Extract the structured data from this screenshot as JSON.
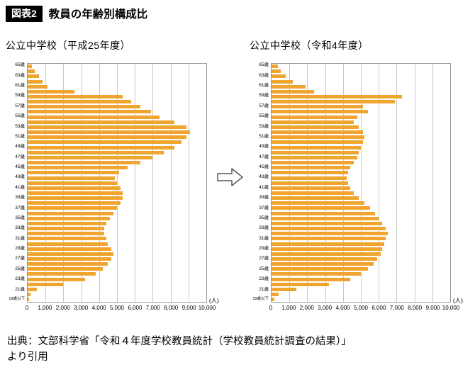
{
  "header": {
    "badge": "図表2",
    "title": "教員の年齢別構成比"
  },
  "source": {
    "line1": "出典：文部科学省「令和４年度学校教員統計（学校教員統計調査の結果）」",
    "line2": "より引用"
  },
  "colors": {
    "bar": "#F0A531",
    "grid": "#C8C8C8",
    "plot_border": "#9A9A9A"
  },
  "chart_data": [
    {
      "type": "bar",
      "orientation": "horizontal",
      "title": "公立中学校（平成25年度）",
      "unit": "(人)",
      "xlim": [
        0,
        10000
      ],
      "grid": true,
      "xticks": [
        "0",
        "1,000",
        "2,000",
        "3,000",
        "4,000",
        "5,000",
        "6,000",
        "7,000",
        "8,000",
        "9,000",
        "10,000"
      ],
      "rows": [
        {
          "label": "65歳",
          "value": 250
        },
        {
          "label": "",
          "value": 400
        },
        {
          "label": "63歳",
          "value": 650
        },
        {
          "label": "",
          "value": 850
        },
        {
          "label": "61歳",
          "value": 1100
        },
        {
          "label": "",
          "value": 2600
        },
        {
          "label": "59歳",
          "value": 5300
        },
        {
          "label": "",
          "value": 5800
        },
        {
          "label": "57歳",
          "value": 6300
        },
        {
          "label": "",
          "value": 6900
        },
        {
          "label": "55歳",
          "value": 7400
        },
        {
          "label": "",
          "value": 8200
        },
        {
          "label": "53歳",
          "value": 8900
        },
        {
          "label": "",
          "value": 9100
        },
        {
          "label": "51歳",
          "value": 8900
        },
        {
          "label": "",
          "value": 8600
        },
        {
          "label": "49歳",
          "value": 8200
        },
        {
          "label": "",
          "value": 7600
        },
        {
          "label": "47歳",
          "value": 7000
        },
        {
          "label": "",
          "value": 6300
        },
        {
          "label": "45歳",
          "value": 5600
        },
        {
          "label": "",
          "value": 5100
        },
        {
          "label": "43歳",
          "value": 4900
        },
        {
          "label": "",
          "value": 5000
        },
        {
          "label": "41歳",
          "value": 5200
        },
        {
          "label": "",
          "value": 5300
        },
        {
          "label": "39歳",
          "value": 5300
        },
        {
          "label": "",
          "value": 5200
        },
        {
          "label": "37歳",
          "value": 5000
        },
        {
          "label": "",
          "value": 4800
        },
        {
          "label": "35歳",
          "value": 4600
        },
        {
          "label": "",
          "value": 4400
        },
        {
          "label": "33歳",
          "value": 4300
        },
        {
          "label": "",
          "value": 4300
        },
        {
          "label": "31歳",
          "value": 4400
        },
        {
          "label": "",
          "value": 4500
        },
        {
          "label": "29歳",
          "value": 4700
        },
        {
          "label": "",
          "value": 4800
        },
        {
          "label": "27歳",
          "value": 4700
        },
        {
          "label": "",
          "value": 4500
        },
        {
          "label": "25歳",
          "value": 4200
        },
        {
          "label": "",
          "value": 3800
        },
        {
          "label": "23歳",
          "value": 3200
        },
        {
          "label": "",
          "value": 2000
        },
        {
          "label": "21歳",
          "value": 500
        },
        {
          "label": "",
          "value": 150
        },
        {
          "label": "19歳以下",
          "value": 80
        }
      ]
    },
    {
      "type": "bar",
      "orientation": "horizontal",
      "title": "公立中学校（令和4年度）",
      "unit": "(人)",
      "xlim": [
        0,
        10000
      ],
      "grid": true,
      "xticks": [
        "0",
        "1,000",
        "2,000",
        "3,000",
        "4,000",
        "5,000",
        "6,000",
        "7,000",
        "8,000",
        "9,000",
        "10,000"
      ],
      "rows": [
        {
          "label": "65歳",
          "value": 350
        },
        {
          "label": "",
          "value": 500
        },
        {
          "label": "63歳",
          "value": 800
        },
        {
          "label": "",
          "value": 1200
        },
        {
          "label": "61歳",
          "value": 1900
        },
        {
          "label": "",
          "value": 2400
        },
        {
          "label": "59歳",
          "value": 7300
        },
        {
          "label": "",
          "value": 6900
        },
        {
          "label": "57歳",
          "value": 5100
        },
        {
          "label": "",
          "value": 5400
        },
        {
          "label": "55歳",
          "value": 4800
        },
        {
          "label": "",
          "value": 4600
        },
        {
          "label": "53歳",
          "value": 4900
        },
        {
          "label": "",
          "value": 5100
        },
        {
          "label": "51歳",
          "value": 5200
        },
        {
          "label": "",
          "value": 5100
        },
        {
          "label": "49歳",
          "value": 5000
        },
        {
          "label": "",
          "value": 4900
        },
        {
          "label": "47歳",
          "value": 4800
        },
        {
          "label": "",
          "value": 4600
        },
        {
          "label": "45歳",
          "value": 4400
        },
        {
          "label": "",
          "value": 4300
        },
        {
          "label": "43歳",
          "value": 4200
        },
        {
          "label": "",
          "value": 4300
        },
        {
          "label": "41歳",
          "value": 4400
        },
        {
          "label": "",
          "value": 4600
        },
        {
          "label": "39歳",
          "value": 4900
        },
        {
          "label": "",
          "value": 5200
        },
        {
          "label": "37歳",
          "value": 5500
        },
        {
          "label": "",
          "value": 5800
        },
        {
          "label": "35歳",
          "value": 6000
        },
        {
          "label": "",
          "value": 6200
        },
        {
          "label": "33歳",
          "value": 6400
        },
        {
          "label": "",
          "value": 6500
        },
        {
          "label": "31歳",
          "value": 6400
        },
        {
          "label": "",
          "value": 6300
        },
        {
          "label": "29歳",
          "value": 6200
        },
        {
          "label": "",
          "value": 6100
        },
        {
          "label": "27歳",
          "value": 5900
        },
        {
          "label": "",
          "value": 5700
        },
        {
          "label": "25歳",
          "value": 5400
        },
        {
          "label": "",
          "value": 5000
        },
        {
          "label": "23歳",
          "value": 4400
        },
        {
          "label": "",
          "value": 3200
        },
        {
          "label": "21歳",
          "value": 1400
        },
        {
          "label": "",
          "value": 400
        },
        {
          "label": "19歳以下",
          "value": 150
        }
      ]
    }
  ]
}
